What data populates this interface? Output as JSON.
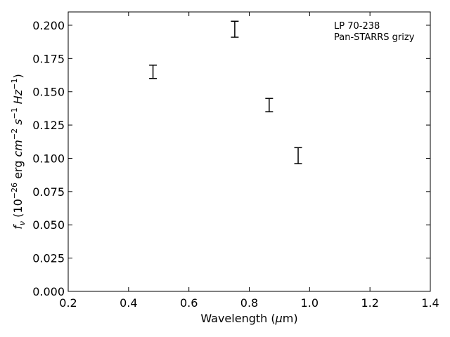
{
  "chart_data": {
    "type": "scatter",
    "annotation_lines": [
      "LP 70-238",
      "Pan-STARRS grizy"
    ],
    "xlabel": {
      "pre": "Wavelength (",
      "italic": "μ",
      "post": "m)"
    },
    "ylabel": {
      "f": "f",
      "nu": "ν",
      "open": " (10",
      "e26": "−26",
      "erg": " erg ",
      "cm": "cm",
      "e2": "−2",
      "s": " s",
      "e1a": "−1",
      "hz": " Hz",
      "e1b": "−1",
      "close": ")"
    },
    "xlim": [
      0.2,
      1.4
    ],
    "ylim": [
      0.0,
      0.21
    ],
    "xticks": [
      0.2,
      0.4,
      0.6,
      0.8,
      1.0,
      1.2,
      1.4
    ],
    "xtick_labels": [
      "0.2",
      "0.4",
      "0.6",
      "0.8",
      "1.0",
      "1.2",
      "1.4"
    ],
    "yticks": [
      0.0,
      0.025,
      0.05,
      0.075,
      0.1,
      0.125,
      0.15,
      0.175,
      0.2
    ],
    "ytick_labels": [
      "0.000",
      "0.025",
      "0.050",
      "0.075",
      "0.100",
      "0.125",
      "0.150",
      "0.175",
      "0.200"
    ],
    "points": [
      {
        "x": 0.481,
        "y": 0.165,
        "yerr": 0.005
      },
      {
        "x": 0.752,
        "y": 0.197,
        "yerr": 0.006
      },
      {
        "x": 0.866,
        "y": 0.14,
        "yerr": 0.005
      },
      {
        "x": 0.962,
        "y": 0.102,
        "yerr": 0.006
      }
    ],
    "grid": false,
    "legend_position": "top-right",
    "color": "#000000"
  }
}
